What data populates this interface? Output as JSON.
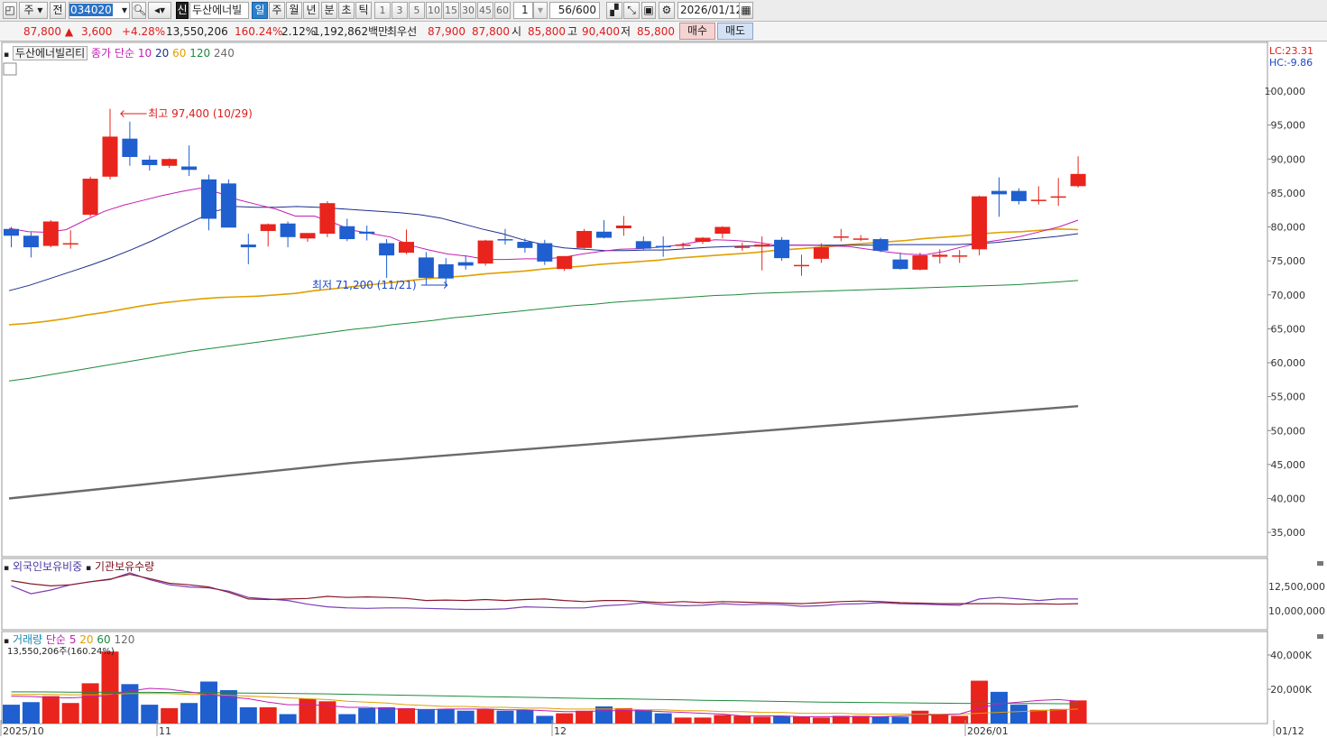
{
  "toolbar": {
    "period_type": "주",
    "scope": "전",
    "code": "034020",
    "badge_new": "신",
    "stock_name": "두산에너빌",
    "tabs": [
      "일",
      "주",
      "월",
      "년",
      "분",
      "초",
      "틱"
    ],
    "active_tab": "일",
    "intervals": [
      "1",
      "3",
      "5",
      "10",
      "15",
      "30",
      "45",
      "60"
    ],
    "unit": "1",
    "count": "56/600",
    "date": "2026/01/12"
  },
  "quote": {
    "price": "87,800",
    "change": "3,600",
    "change_pct": "+4.28%",
    "volume": "13,550,206",
    "volume_ratio": "160.24%",
    "turnover": "2.12%",
    "amount": "1,192,862백만",
    "best_label": "최우선",
    "ask": "87,900",
    "bid": "87,800",
    "open_label": "시",
    "open": "85,800",
    "high_label": "고",
    "high": "90,400",
    "low_label": "저",
    "low": "85,800",
    "buy": "매수",
    "sell": "매도"
  },
  "main_panel": {
    "stock_label": "두산에너빌리티",
    "ma_label": "종가 단순",
    "ma_periods": [
      "10",
      "20",
      "60",
      "120",
      "240"
    ],
    "ma_colors": [
      "#c21fb3",
      "#1c2f8c",
      "#e0a000",
      "#1e8a3c",
      "#6b6b6b"
    ],
    "lc": "LC:23.31",
    "hc": "HC:-9.86",
    "high_annotation": "최고 97,400 (10/29)",
    "low_annotation": "최저 71,200 (11/21)",
    "y_ticks": [
      "100,000",
      "95,000",
      "90,000",
      "85,000",
      "80,000",
      "75,000",
      "70,000",
      "65,000",
      "60,000",
      "55,000",
      "50,000",
      "45,000",
      "40,000",
      "35,000"
    ]
  },
  "holding_panel": {
    "label1": "외국인보유비중",
    "label2": "기관보유수량",
    "y_ticks": [
      "12,500,000",
      "10,000,000"
    ]
  },
  "volume_panel": {
    "label": "거래량",
    "ma_label": "단순",
    "ma_periods": [
      "5",
      "20",
      "60",
      "120"
    ],
    "info": "13,550,206주(160.24%)",
    "y_ticks": [
      "40,000K",
      "20,000K"
    ]
  },
  "x_labels": [
    "2025/10",
    "11",
    "12",
    "2026/01",
    "01/12"
  ],
  "chart_data": {
    "type": "candlestick",
    "up_color": "#e8241c",
    "down_color": "#1f5fcf",
    "candles": [
      {
        "o": 79700,
        "h": 80000,
        "l": 77000,
        "c": 78700
      },
      {
        "o": 78700,
        "h": 79200,
        "l": 75500,
        "c": 77000
      },
      {
        "o": 77200,
        "h": 81000,
        "l": 77000,
        "c": 80800
      },
      {
        "o": 77600,
        "h": 79500,
        "l": 76800,
        "c": 77600
      },
      {
        "o": 81800,
        "h": 87400,
        "l": 81500,
        "c": 87100
      },
      {
        "o": 87400,
        "h": 97400,
        "l": 87000,
        "c": 93300
      },
      {
        "o": 93000,
        "h": 95500,
        "l": 89000,
        "c": 90300
      },
      {
        "o": 89900,
        "h": 90500,
        "l": 88300,
        "c": 89100
      },
      {
        "o": 89000,
        "h": 90100,
        "l": 88700,
        "c": 90000
      },
      {
        "o": 88900,
        "h": 92000,
        "l": 87500,
        "c": 88400
      },
      {
        "o": 87000,
        "h": 87700,
        "l": 79500,
        "c": 81200
      },
      {
        "o": 86400,
        "h": 87000,
        "l": 80000,
        "c": 79900
      },
      {
        "o": 77400,
        "h": 79000,
        "l": 74500,
        "c": 77000
      },
      {
        "o": 79400,
        "h": 80500,
        "l": 77100,
        "c": 80400
      },
      {
        "o": 80500,
        "h": 80800,
        "l": 77000,
        "c": 78500
      },
      {
        "o": 78300,
        "h": 79000,
        "l": 77800,
        "c": 79100
      },
      {
        "o": 79000,
        "h": 83800,
        "l": 78500,
        "c": 83500
      },
      {
        "o": 80100,
        "h": 81200,
        "l": 77900,
        "c": 78200
      },
      {
        "o": 79300,
        "h": 80200,
        "l": 78000,
        "c": 79000
      },
      {
        "o": 77600,
        "h": 78200,
        "l": 72500,
        "c": 75800
      },
      {
        "o": 76200,
        "h": 79600,
        "l": 76000,
        "c": 77800
      },
      {
        "o": 75500,
        "h": 76300,
        "l": 71500,
        "c": 72500
      },
      {
        "o": 74500,
        "h": 75400,
        "l": 71200,
        "c": 72400
      },
      {
        "o": 74800,
        "h": 75800,
        "l": 73700,
        "c": 74300
      },
      {
        "o": 74600,
        "h": 78100,
        "l": 74300,
        "c": 78000
      },
      {
        "o": 78200,
        "h": 79700,
        "l": 77400,
        "c": 78100
      },
      {
        "o": 77800,
        "h": 78300,
        "l": 76200,
        "c": 76900
      },
      {
        "o": 77600,
        "h": 78100,
        "l": 74400,
        "c": 74900
      },
      {
        "o": 73800,
        "h": 75700,
        "l": 73500,
        "c": 75700
      },
      {
        "o": 76900,
        "h": 79700,
        "l": 76800,
        "c": 79400
      },
      {
        "o": 79300,
        "h": 81000,
        "l": 78300,
        "c": 78400
      },
      {
        "o": 79800,
        "h": 81600,
        "l": 78700,
        "c": 80200
      },
      {
        "o": 77900,
        "h": 78600,
        "l": 76600,
        "c": 76800
      },
      {
        "o": 77200,
        "h": 78600,
        "l": 75600,
        "c": 77000
      },
      {
        "o": 77200,
        "h": 77700,
        "l": 76700,
        "c": 77400
      },
      {
        "o": 77800,
        "h": 78500,
        "l": 77500,
        "c": 78400
      },
      {
        "o": 79000,
        "h": 80100,
        "l": 78300,
        "c": 80000
      },
      {
        "o": 77100,
        "h": 77700,
        "l": 76500,
        "c": 77100
      },
      {
        "o": 77100,
        "h": 78600,
        "l": 73600,
        "c": 77400
      },
      {
        "o": 78100,
        "h": 78500,
        "l": 75000,
        "c": 75400
      },
      {
        "o": 74300,
        "h": 75900,
        "l": 72800,
        "c": 74400
      },
      {
        "o": 75300,
        "h": 77600,
        "l": 74700,
        "c": 77000
      },
      {
        "o": 78400,
        "h": 79700,
        "l": 77900,
        "c": 78600
      },
      {
        "o": 78300,
        "h": 78800,
        "l": 77900,
        "c": 78300
      },
      {
        "o": 78200,
        "h": 78400,
        "l": 76300,
        "c": 76500
      },
      {
        "o": 75200,
        "h": 76200,
        "l": 73700,
        "c": 73800
      },
      {
        "o": 73700,
        "h": 76200,
        "l": 73600,
        "c": 75800
      },
      {
        "o": 75600,
        "h": 76700,
        "l": 74600,
        "c": 75900
      },
      {
        "o": 75800,
        "h": 76600,
        "l": 74700,
        "c": 75800
      },
      {
        "o": 76700,
        "h": 84600,
        "l": 75800,
        "c": 84500
      },
      {
        "o": 85300,
        "h": 87300,
        "l": 81500,
        "c": 84800
      },
      {
        "o": 85300,
        "h": 85700,
        "l": 83300,
        "c": 83800
      },
      {
        "o": 83900,
        "h": 86000,
        "l": 83300,
        "c": 84000
      },
      {
        "o": 84300,
        "h": 87200,
        "l": 83100,
        "c": 84500
      },
      {
        "o": 86000,
        "h": 90400,
        "l": 85800,
        "c": 87800
      }
    ],
    "ma10": [
      79800,
      79300,
      79200,
      79600,
      81000,
      82300,
      83200,
      83900,
      84600,
      85200,
      85700,
      85000,
      84000,
      83300,
      82600,
      81600,
      81600,
      80600,
      79500,
      79000,
      78500,
      77300,
      76600,
      76000,
      75700,
      75200,
      75200,
      75300,
      75300,
      75500,
      76000,
      76400,
      76700,
      76800,
      77000,
      77300,
      77800,
      78100,
      78000,
      77800,
      77400,
      77300,
      77300,
      77200,
      77100,
      76700,
      76300,
      76000,
      75900,
      76400,
      77100,
      77700,
      78100,
      78600,
      79300,
      80000,
      81000
    ],
    "ma20": [
      70600,
      71400,
      72400,
      73400,
      74400,
      75500,
      76700,
      78000,
      79500,
      80900,
      82300,
      83000,
      82900,
      82900,
      83000,
      82900,
      82700,
      82500,
      82300,
      82100,
      81800,
      81300,
      80500,
      79700,
      79000,
      78100,
      77400,
      76900,
      76700,
      76500,
      76500,
      76600,
      76600,
      76800,
      77000,
      77100,
      77200,
      77200,
      77300,
      77300,
      77300,
      77300,
      77300,
      77400,
      77400,
      77400,
      77400,
      77500,
      77700,
      78000,
      78300,
      78600,
      79000
    ],
    "ma60": [
      65600,
      65800,
      66100,
      66500,
      67000,
      67400,
      67900,
      68400,
      68800,
      69100,
      69400,
      69600,
      69700,
      69800,
      70000,
      70200,
      70600,
      70900,
      71200,
      71500,
      71800,
      72100,
      72400,
      72600,
      72800,
      73100,
      73300,
      73500,
      73800,
      74000,
      74200,
      74500,
      74700,
      74900,
      75100,
      75400,
      75600,
      75800,
      76000,
      76200,
      76500,
      76700,
      76900,
      77100,
      77400,
      77600,
      77800,
      78000,
      78300,
      78500,
      78700,
      79000,
      79200,
      79300,
      79500,
      79700,
      79600
    ],
    "ma120": [
      57300,
      57700,
      58200,
      58700,
      59200,
      59700,
      60200,
      60700,
      61200,
      61700,
      62100,
      62500,
      62900,
      63300,
      63700,
      64100,
      64500,
      64900,
      65200,
      65600,
      65900,
      66200,
      66600,
      66900,
      67200,
      67500,
      67800,
      68100,
      68400,
      68600,
      68900,
      69100,
      69300,
      69500,
      69700,
      69900,
      70000,
      70200,
      70300,
      70400,
      70500,
      70600,
      70700,
      70800,
      70900,
      71000,
      71100,
      71200,
      71300,
      71400,
      71500,
      71700,
      71900,
      72100
    ],
    "ma240": [
      40000,
      40400,
      40800,
      41200,
      41600,
      42000,
      42400,
      42800,
      43200,
      43600,
      44000,
      44400,
      44800,
      45200,
      45500,
      45800,
      46100,
      46400,
      46700,
      47000,
      47300,
      47600,
      47900,
      48200,
      48500,
      48800,
      49100,
      49400,
      49700,
      50000,
      50300,
      50600,
      50900,
      51200,
      51500,
      51800,
      52100,
      52400,
      52700,
      53000,
      53300,
      53600
    ],
    "foreign_ratio": [
      0.7,
      0.55,
      0.62,
      0.72,
      0.78,
      0.82,
      0.95,
      0.82,
      0.72,
      0.68,
      0.66,
      0.6,
      0.48,
      0.45,
      0.42,
      0.35,
      0.3,
      0.28,
      0.27,
      0.28,
      0.28,
      0.27,
      0.26,
      0.25,
      0.25,
      0.26,
      0.3,
      0.29,
      0.28,
      0.28,
      0.32,
      0.34,
      0.38,
      0.34,
      0.32,
      0.33,
      0.36,
      0.34,
      0.35,
      0.34,
      0.31,
      0.32,
      0.35,
      0.36,
      0.38,
      0.36,
      0.35,
      0.34,
      0.33,
      0.45,
      0.48,
      0.45,
      0.42,
      0.45,
      0.45
    ],
    "institution_qty": [
      0.8,
      0.74,
      0.7,
      0.72,
      0.78,
      0.83,
      0.92,
      0.84,
      0.75,
      0.72,
      0.68,
      0.58,
      0.45,
      0.44,
      0.45,
      0.46,
      0.5,
      0.48,
      0.49,
      0.48,
      0.46,
      0.42,
      0.43,
      0.42,
      0.44,
      0.42,
      0.44,
      0.45,
      0.42,
      0.4,
      0.42,
      0.42,
      0.4,
      0.38,
      0.4,
      0.38,
      0.4,
      0.39,
      0.38,
      0.37,
      0.36,
      0.38,
      0.4,
      0.41,
      0.4,
      0.38,
      0.37,
      0.36,
      0.36,
      0.36,
      0.36,
      0.35,
      0.36,
      0.35,
      0.36
    ],
    "volume_k": [
      11000,
      12500,
      16000,
      12000,
      23500,
      42000,
      23000,
      11000,
      9000,
      12000,
      24500,
      19500,
      9500,
      9500,
      5500,
      14500,
      13000,
      5500,
      9000,
      9500,
      9000,
      8500,
      8500,
      7500,
      8500,
      7500,
      8000,
      4500,
      6000,
      7500,
      10000,
      9000,
      8000,
      6000,
      3500,
      3500,
      5000,
      4500,
      4000,
      4500,
      4000,
      3500,
      4500,
      4500,
      4000,
      4000,
      7500,
      5000,
      4500,
      25000,
      18500,
      11000,
      8000,
      8500,
      13500
    ],
    "vol_ma5": [
      16000,
      15800,
      15200,
      15000,
      15500,
      16500,
      19000,
      20500,
      20000,
      18500,
      17000,
      15500,
      14500,
      12500,
      11000,
      11000,
      10500,
      9500,
      9500,
      8500,
      8500,
      8000,
      8500,
      8500,
      8500,
      8000,
      8000,
      7500,
      7000,
      7000,
      7500,
      7500,
      7500,
      7000,
      6500,
      6000,
      5500,
      4500,
      4500,
      4500,
      4000,
      4000,
      4000,
      4000,
      4000,
      4500,
      5000,
      5000,
      5500,
      9000,
      11500,
      12500,
      13500,
      14000,
      13000
    ],
    "vol_ma20": [
      17000,
      17000,
      17000,
      16800,
      16800,
      17000,
      17500,
      17500,
      17500,
      17000,
      17000,
      16500,
      16000,
      15500,
      15000,
      14500,
      14000,
      13000,
      12500,
      12000,
      11000,
      10500,
      10000,
      10000,
      9500,
      9500,
      9000,
      9000,
      8500,
      8500,
      8500,
      8500,
      8000,
      8000,
      7500,
      7500,
      7000,
      7000,
      6500,
      6500,
      6000,
      6000,
      6000,
      5500,
      5500,
      5500,
      5500,
      5500,
      5500,
      6000,
      6500,
      7000,
      7500,
      8000,
      8500
    ],
    "vol_ma60": [
      18500,
      18500,
      18400,
      18300,
      18300,
      18300,
      18200,
      18200,
      18100,
      18000,
      18000,
      17900,
      17800,
      17700,
      17600,
      17400,
      17300,
      17100,
      16900,
      16700,
      16500,
      16300,
      16100,
      15900,
      15700,
      15500,
      15300,
      15100,
      14900,
      14700,
      14500,
      14400,
      14200,
      14000,
      13800,
      13600,
      13400,
      13300,
      13100,
      12900,
      12700,
      12500,
      12400,
      12300,
      12200,
      12100,
      12000,
      11900,
      11800,
      11800,
      11800,
      11700,
      11700,
      11600,
      11600
    ]
  }
}
